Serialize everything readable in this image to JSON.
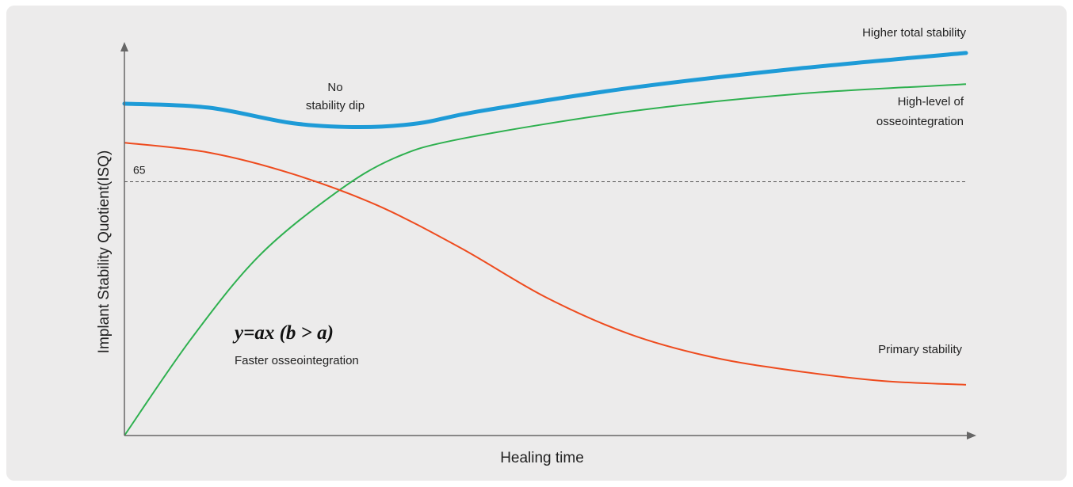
{
  "chart_data": {
    "type": "line",
    "xlabel": "Healing time",
    "ylabel": "Implant Stability Quotient(ISQ)",
    "xlim": [
      0,
      100
    ],
    "ylim": [
      0,
      100
    ],
    "reference_line": {
      "value": 65,
      "label": "65",
      "style": "dashed"
    },
    "series": [
      {
        "key": "total",
        "color": "#1e9bd7",
        "label": "Higher total stability",
        "points": [
          [
            0,
            85
          ],
          [
            10,
            84
          ],
          [
            20,
            80
          ],
          [
            28,
            79
          ],
          [
            35,
            80
          ],
          [
            42,
            83
          ],
          [
            60,
            89
          ],
          [
            80,
            94
          ],
          [
            100,
            98
          ]
        ]
      },
      {
        "key": "osseo",
        "color": "#2eb04f",
        "label": "High-level of osseointegration",
        "points": [
          [
            0,
            0
          ],
          [
            8,
            25
          ],
          [
            16,
            46
          ],
          [
            25,
            62
          ],
          [
            32,
            71
          ],
          [
            40,
            76
          ],
          [
            60,
            83
          ],
          [
            80,
            87.5
          ],
          [
            100,
            90
          ]
        ]
      },
      {
        "key": "primary",
        "color": "#ee4b1e",
        "label": "Primary stability",
        "points": [
          [
            0,
            75
          ],
          [
            10,
            72.5
          ],
          [
            20,
            67
          ],
          [
            30,
            59
          ],
          [
            40,
            48
          ],
          [
            50,
            35.5
          ],
          [
            60,
            26
          ],
          [
            70,
            20
          ],
          [
            80,
            16.5
          ],
          [
            90,
            14
          ],
          [
            100,
            13
          ]
        ]
      }
    ],
    "annotations": {
      "dip_line1": "No",
      "dip_line2": "stability dip",
      "formula": "y=ax (b > a)",
      "formula_caption": "Faster osseointegration",
      "osseo_line1": "High-level of",
      "osseo_line2": "osseointegration"
    }
  }
}
